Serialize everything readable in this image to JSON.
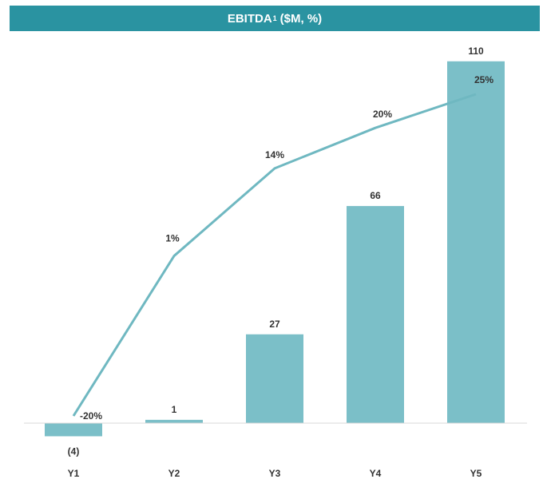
{
  "header": {
    "title_main": "EBITDA",
    "title_sup": "1",
    "title_units": "($M, %)"
  },
  "colors": {
    "header_bg": "#2a93a1",
    "bar": "#7bbfc8",
    "line": "#6fb8c1",
    "axis": "#d9d9d9"
  },
  "chart_data": {
    "type": "bar",
    "title": "EBITDA¹ ($M, %)",
    "categories": [
      "Y1",
      "Y2",
      "Y3",
      "Y4",
      "Y5"
    ],
    "series": [
      {
        "type": "bar",
        "values": [
          -4,
          1,
          27,
          66,
          110
        ],
        "labels": [
          "(4)",
          "1",
          "27",
          "66",
          "110"
        ]
      },
      {
        "type": "line",
        "values": [
          -20,
          1,
          14,
          20,
          25
        ],
        "labels": [
          "-20%",
          "1%",
          "14%",
          "20%",
          "25%"
        ]
      }
    ],
    "grid": false,
    "legend": "none"
  }
}
